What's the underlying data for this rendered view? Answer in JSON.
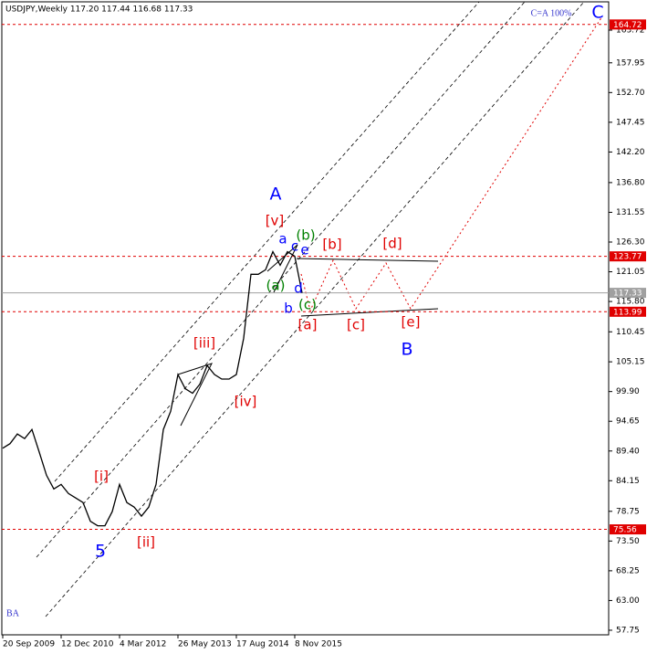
{
  "chart_data": {
    "type": "line",
    "title": "USDJPY,Weekly  117.20 117.44 116.68 117.33",
    "categories": [
      "20 Sep 2009",
      null,
      null,
      null,
      null,
      null,
      null,
      null,
      "12 Dec 2010",
      null,
      null,
      null,
      null,
      null,
      null,
      null,
      "4 Mar 2012",
      null,
      null,
      null,
      null,
      null,
      null,
      null,
      "26 May 2013",
      null,
      null,
      null,
      null,
      null,
      null,
      null,
      "17 Aug 2014",
      null,
      null,
      null,
      null,
      null,
      null,
      null,
      "8 Nov 2015",
      null,
      null,
      null,
      null,
      null,
      null,
      null,
      null,
      null,
      null,
      null,
      null,
      null,
      null,
      null,
      null,
      null,
      null,
      null,
      null,
      null,
      null,
      null,
      null,
      null,
      null,
      null,
      null,
      null,
      null,
      null,
      null,
      null,
      null,
      null,
      null,
      null,
      null,
      null,
      null,
      null,
      null
    ],
    "series": [
      {
        "name": "USDJPY",
        "color": "#000000",
        "values": [
          89.9,
          90.7,
          92.4,
          91.6,
          93.2,
          89.2,
          85.1,
          82.7,
          83.5,
          81.9,
          81.1,
          80.3,
          77.0,
          76.2,
          76.2,
          78.7,
          83.5,
          80.3,
          79.5,
          77.9,
          79.5,
          83.5,
          93.2,
          96.4,
          102.9,
          100.4,
          99.6,
          101.2,
          104.5,
          102.9,
          102.1,
          102.1,
          102.9,
          109.3,
          120.6,
          120.6,
          121.4,
          124.6,
          122.2,
          124.6,
          123.8,
          117.33,
          null,
          null,
          null,
          null,
          null,
          null,
          null,
          null,
          null,
          null,
          null,
          null,
          null,
          null,
          null,
          null,
          null,
          null,
          null,
          null,
          null,
          null,
          null,
          null,
          null,
          null,
          null,
          null,
          null,
          null,
          null,
          null,
          null,
          null,
          null,
          null,
          null,
          null,
          null,
          null,
          null
        ]
      }
    ],
    "ylim": [
      56.94,
      168.72
    ],
    "yticks": [
      163.72,
      157.95,
      {
        "value": 152.7,
        "label": "152.70"
      },
      147.45,
      {
        "value": 142.2,
        "label": "142.20"
      },
      {
        "value": 136.8,
        "label": "136.80"
      },
      131.55,
      {
        "value": 126.3,
        "label": "126.30"
      },
      121.05,
      {
        "value": 115.8,
        "label": "115.80"
      },
      110.45,
      105.15,
      {
        "value": 99.9,
        "label": "99.90"
      },
      94.65,
      {
        "value": 89.4,
        "label": "89.40"
      },
      84.15,
      78.75,
      {
        "value": 73.5,
        "label": "73.50"
      },
      68.25,
      {
        "value": 63,
        "label": "63.00"
      },
      57.75
    ],
    "levels": [
      {
        "value": 164.72,
        "color": "#e00000"
      },
      {
        "value": 123.77,
        "color": "#e00000"
      },
      {
        "value": 117.33,
        "color": "#a0a0a0"
      },
      {
        "value": 113.99,
        "color": "#e00000"
      },
      {
        "value": 75.56,
        "color": "#e00000"
      }
    ],
    "annotations": [
      {
        "text": "A",
        "color": "#0000ff"
      },
      {
        "text": "[v]",
        "color": "#e00000"
      },
      {
        "text": "(b)",
        "color": "#008000"
      },
      {
        "text": "a",
        "color": "#0000ff"
      },
      {
        "text": "c",
        "color": "#0000ff"
      },
      {
        "text": "e",
        "color": "#0000ff"
      },
      {
        "text": "[b]",
        "color": "#e00000"
      },
      {
        "text": "[d]",
        "color": "#e00000"
      },
      {
        "text": "(a)",
        "color": "#008000"
      },
      {
        "text": "d",
        "color": "#0000ff"
      },
      {
        "text": "b",
        "color": "#0000ff"
      },
      {
        "text": "(c)",
        "color": "#008000"
      },
      {
        "text": "[a]",
        "color": "#e00000"
      },
      {
        "text": "[c]",
        "color": "#e00000"
      },
      {
        "text": "[e]",
        "color": "#e00000"
      },
      {
        "text": "B",
        "color": "#0000ff"
      },
      {
        "text": "[iii]",
        "color": "#e00000"
      },
      {
        "text": "[iv]",
        "color": "#e00000"
      },
      {
        "text": "[i]",
        "color": "#e00000"
      },
      {
        "text": "[ii]",
        "color": "#e00000"
      },
      {
        "text": "5",
        "color": "#0000ff"
      },
      {
        "text": "C=A 100%",
        "color": "#3333cc"
      },
      {
        "text": "C",
        "color": "#0000ff"
      },
      {
        "text": "BA",
        "color": "#3333cc"
      }
    ]
  }
}
